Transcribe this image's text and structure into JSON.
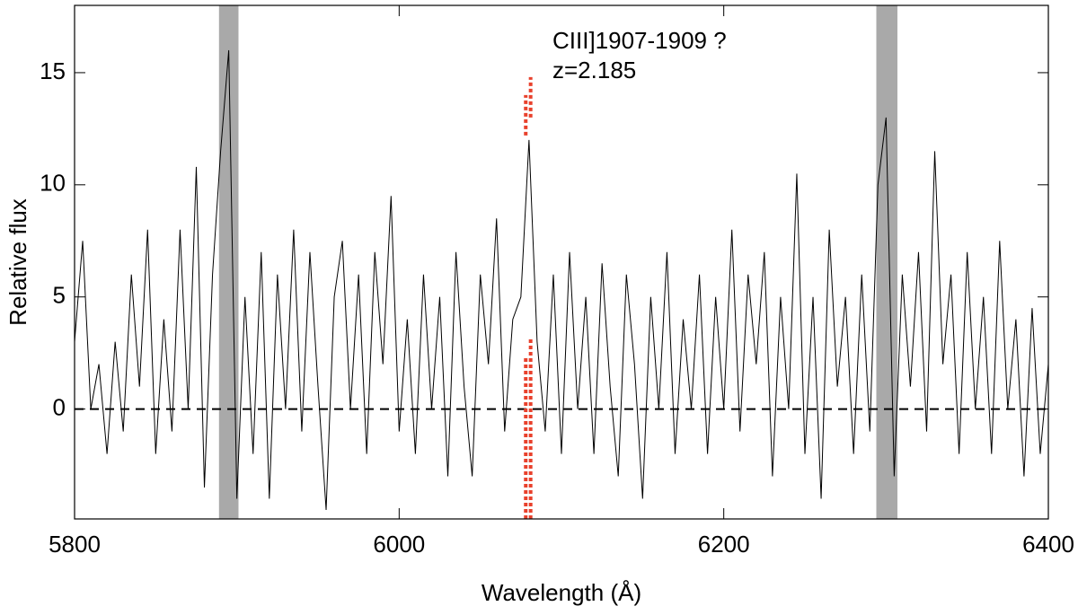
{
  "chart_data": {
    "type": "line",
    "x_label": "Wavelength (Å)",
    "y_label": "Relative flux",
    "annotations": [
      "CIII]1907-1909 ?",
      "z=2.185"
    ],
    "xlim": [
      5800,
      6400
    ],
    "ylim": [
      -4.9,
      18
    ],
    "xticks": [
      5800,
      6000,
      6200,
      6400
    ],
    "yticks": [
      0,
      5,
      10,
      15
    ],
    "hline": 0,
    "bands": [
      [
        5889,
        5901
      ],
      [
        6294,
        6307
      ]
    ],
    "band_color": "#a9a9a9",
    "markers": [
      {
        "x": 6078,
        "upper": [
          12.2,
          14
        ],
        "lower": [
          -4.9,
          2.3
        ]
      },
      {
        "x": 6081,
        "upper": [
          13,
          14.8
        ],
        "lower": [
          -4.9,
          3.2
        ]
      }
    ],
    "marker_color": "#e8412c",
    "series": [
      {
        "color": "#000000",
        "x": [
          5800,
          5805,
          5810,
          5815,
          5820,
          5825,
          5830,
          5835,
          5840,
          5845,
          5850,
          5855,
          5860,
          5865,
          5870,
          5875,
          5880,
          5885,
          5890,
          5895,
          5900,
          5905,
          5910,
          5915,
          5920,
          5925,
          5930,
          5935,
          5940,
          5945,
          5950,
          5955,
          5960,
          5965,
          5970,
          5975,
          5980,
          5985,
          5990,
          5995,
          6000,
          6005,
          6010,
          6015,
          6020,
          6025,
          6030,
          6035,
          6040,
          6045,
          6050,
          6055,
          6060,
          6065,
          6070,
          6075,
          6080,
          6085,
          6090,
          6095,
          6100,
          6105,
          6110,
          6115,
          6120,
          6125,
          6130,
          6135,
          6140,
          6145,
          6150,
          6155,
          6160,
          6165,
          6170,
          6175,
          6180,
          6185,
          6190,
          6195,
          6200,
          6205,
          6210,
          6215,
          6220,
          6225,
          6230,
          6235,
          6240,
          6245,
          6250,
          6255,
          6260,
          6265,
          6270,
          6275,
          6280,
          6285,
          6290,
          6295,
          6300,
          6305,
          6310,
          6315,
          6320,
          6325,
          6330,
          6335,
          6340,
          6345,
          6350,
          6355,
          6360,
          6365,
          6370,
          6375,
          6380,
          6385,
          6390,
          6395,
          6400
        ],
        "values": [
          3,
          7.5,
          0,
          2,
          -2,
          3,
          -1,
          6,
          1,
          8,
          -2,
          4,
          -1,
          8,
          0,
          10.8,
          -3.5,
          6,
          11.5,
          16,
          -4,
          5,
          -2,
          7,
          -4,
          6,
          0,
          8,
          -1,
          7,
          1,
          -4.5,
          5,
          7.5,
          0,
          6,
          -2,
          7,
          2,
          9.5,
          -1,
          4,
          -2,
          6,
          0,
          5,
          -3,
          7,
          1,
          -3,
          6,
          2,
          8.5,
          -1,
          4,
          5,
          12,
          3,
          -1,
          6,
          -2,
          7,
          0,
          5,
          -2,
          6.5,
          1,
          -3,
          6,
          2,
          -4,
          5,
          0,
          7,
          -2,
          4,
          0,
          6,
          -2,
          5,
          0,
          8,
          -1,
          6,
          2,
          7,
          -3,
          5,
          0,
          10.5,
          -2,
          5,
          -4,
          8,
          1,
          5,
          -2,
          6,
          -1,
          10,
          13,
          -3,
          6,
          1,
          7,
          -1,
          11.5,
          2,
          6,
          -2,
          7,
          0,
          5,
          -2,
          7.5,
          0,
          4,
          -3,
          4.5,
          -2,
          2
        ]
      }
    ]
  }
}
